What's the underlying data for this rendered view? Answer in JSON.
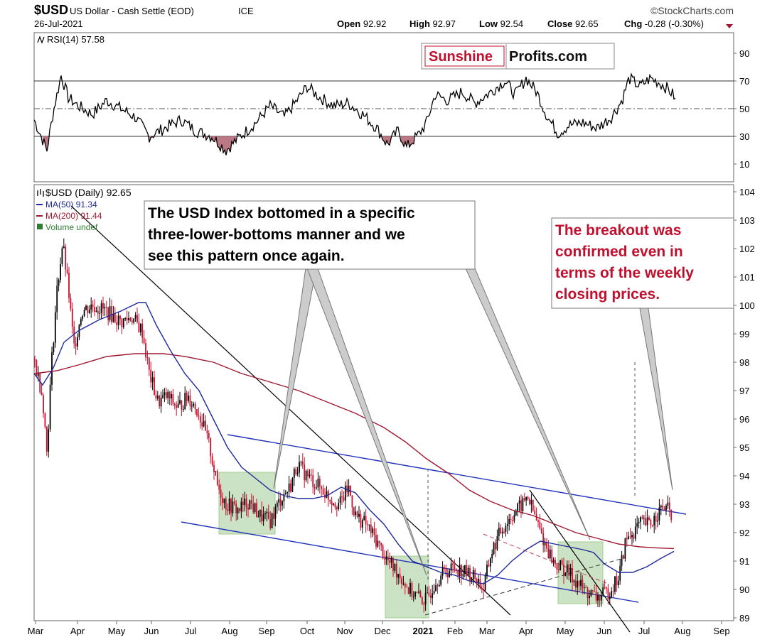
{
  "header": {
    "symbol": "$USD",
    "name": "US Dollar - Cash Settle (EOD)",
    "exchange": "ICE",
    "date": "26-Jul-2021",
    "watermark": "©StockCharts.com",
    "ohlc": [
      {
        "label": "Open",
        "value": "92.92"
      },
      {
        "label": "High",
        "value": "92.97"
      },
      {
        "label": "Low",
        "value": "92.54"
      },
      {
        "label": "Close",
        "value": "92.65"
      },
      {
        "label": "Chg",
        "value": "-0.28 (-0.30%)"
      }
    ]
  },
  "logo": {
    "part1": "Sunshine",
    "part2": "Profits.com"
  },
  "rsi_panel": {
    "label": "RSI(14) 57.58",
    "ticks": [
      90,
      70,
      50,
      30,
      10
    ],
    "levels": {
      "overbought": 70,
      "mid": 50,
      "oversold": 30
    }
  },
  "price_panel": {
    "legend": [
      {
        "text": "$USD (Daily) 92.65",
        "color": "#000000"
      },
      {
        "text": "MA(50) 91.34",
        "color": "#1f2a9a"
      },
      {
        "text": "MA(200) 91.44",
        "color": "#a01830"
      },
      {
        "text": "Volume undef",
        "color": "#2e7d32"
      }
    ],
    "ticks": [
      104,
      103,
      102,
      101,
      100,
      99,
      98,
      97,
      96,
      95,
      94,
      93,
      92,
      91,
      90,
      89
    ],
    "months": [
      "Mar",
      "Apr",
      "May",
      "Jun",
      "Jul",
      "Aug",
      "Sep",
      "Oct",
      "Nov",
      "Dec",
      "2021",
      "Feb",
      "Mar",
      "Apr",
      "May",
      "Jun",
      "Jul",
      "Aug",
      "Sep"
    ]
  },
  "annotations": {
    "callout1": [
      "The USD Index bottomed in a specific",
      "three-lower-bottoms manner and we",
      "see this pattern once again."
    ],
    "callout2": [
      "The breakout was",
      "confirmed even in",
      "terms of the weekly",
      "closing prices."
    ]
  },
  "colors": {
    "bull": "#000000",
    "bear": "#c8102e",
    "ma50": "#1f2a9a",
    "ma200": "#a01830",
    "trend": "#2233bb",
    "callout_red": "#c0102e",
    "zone": "#8fbf7f"
  },
  "chart_data": [
    {
      "type": "line",
      "title": "RSI(14) 57.58",
      "ylim": [
        0,
        100
      ],
      "x": [
        "Mar-2020",
        "Apr",
        "May",
        "Jun",
        "Jul",
        "Aug",
        "Sep",
        "Oct",
        "Nov",
        "Dec",
        "Jan-2021",
        "Feb",
        "Mar",
        "Apr",
        "May",
        "Jun",
        "Jul",
        "Jul-26"
      ],
      "series": [
        {
          "name": "RSI(14)",
          "values": [
            42,
            68,
            52,
            38,
            45,
            25,
            48,
            62,
            50,
            35,
            30,
            52,
            62,
            70,
            38,
            45,
            70,
            58
          ]
        }
      ]
    },
    {
      "type": "line",
      "title": "$USD (Daily) 92.65",
      "ylim": [
        89,
        104
      ],
      "x": [
        "Mar-2020",
        "Apr",
        "May",
        "Jun",
        "Jul",
        "Aug",
        "Sep",
        "Oct",
        "Nov",
        "Dec",
        "Jan-2021",
        "Feb",
        "Mar",
        "Apr",
        "May",
        "Jun",
        "Jul",
        "Jul-26"
      ],
      "series": [
        {
          "name": "$USD (Daily)",
          "values": [
            97.5,
            100.2,
            99.6,
            96.8,
            96.4,
            93.2,
            92.8,
            93.8,
            92.8,
            91.0,
            89.9,
            90.5,
            91.5,
            93.0,
            90.5,
            90.2,
            92.5,
            92.65
          ]
        },
        {
          "name": "MA(50)",
          "values": [
            97.8,
            98.8,
            100.0,
            98.2,
            97.0,
            95.0,
            93.4,
            93.2,
            93.6,
            92.0,
            90.6,
            90.2,
            90.4,
            91.0,
            91.3,
            90.6,
            90.8,
            91.34
          ]
        },
        {
          "name": "MA(200)",
          "values": [
            97.6,
            98.0,
            98.4,
            98.2,
            97.8,
            97.2,
            96.6,
            96.0,
            95.2,
            94.0,
            93.0,
            92.6,
            92.2,
            91.8,
            91.6,
            91.5,
            91.45,
            91.44
          ]
        }
      ]
    }
  ]
}
